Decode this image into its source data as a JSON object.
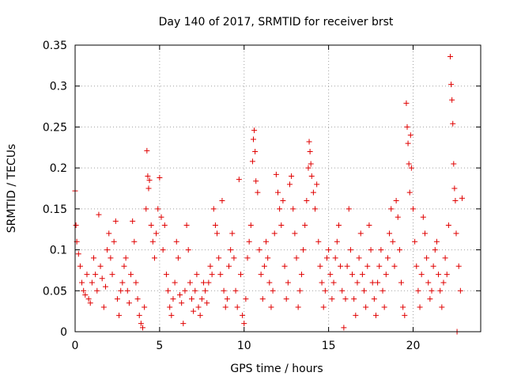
{
  "chart_data": {
    "type": "scatter",
    "title": "Day 140 of 2017, SRMTID for receiver brst",
    "xlabel": "GPS time / hours",
    "ylabel": "SRMTID / TECUs",
    "xlim": [
      0,
      24
    ],
    "ylim": [
      0,
      0.35
    ],
    "xticks": [
      0,
      5,
      10,
      15,
      20
    ],
    "xtick_labels": [
      "0",
      "5",
      "10",
      "15",
      "20"
    ],
    "yticks": [
      0,
      0.05,
      0.1,
      0.15,
      0.2,
      0.25,
      0.3,
      0.35
    ],
    "ytick_labels": [
      "0",
      "0.05",
      "0.1",
      "0.15",
      "0.2",
      "0.25",
      "0.3",
      "0.35"
    ],
    "grid": true,
    "marker": "plus",
    "color": "#e00000",
    "series": [
      {
        "name": "SRMTID",
        "points": [
          [
            0.0,
            0.172
          ],
          [
            0.05,
            0.13
          ],
          [
            0.1,
            0.11
          ],
          [
            0.2,
            0.095
          ],
          [
            0.3,
            0.08
          ],
          [
            0.4,
            0.06
          ],
          [
            0.5,
            0.05
          ],
          [
            0.6,
            0.045
          ],
          [
            0.7,
            0.07
          ],
          [
            0.8,
            0.04
          ],
          [
            0.9,
            0.035
          ],
          [
            1.0,
            0.06
          ],
          [
            1.1,
            0.09
          ],
          [
            1.2,
            0.07
          ],
          [
            1.3,
            0.05
          ],
          [
            1.4,
            0.143
          ],
          [
            1.5,
            0.08
          ],
          [
            1.6,
            0.065
          ],
          [
            1.7,
            0.03
          ],
          [
            1.8,
            0.055
          ],
          [
            1.9,
            0.1
          ],
          [
            2.0,
            0.12
          ],
          [
            2.1,
            0.09
          ],
          [
            2.2,
            0.07
          ],
          [
            2.3,
            0.11
          ],
          [
            2.4,
            0.135
          ],
          [
            2.5,
            0.04
          ],
          [
            2.6,
            0.02
          ],
          [
            2.7,
            0.05
          ],
          [
            2.8,
            0.06
          ],
          [
            2.9,
            0.08
          ],
          [
            3.0,
            0.09
          ],
          [
            3.1,
            0.05
          ],
          [
            3.2,
            0.035
          ],
          [
            3.3,
            0.07
          ],
          [
            3.4,
            0.135
          ],
          [
            3.5,
            0.11
          ],
          [
            3.6,
            0.06
          ],
          [
            3.7,
            0.04
          ],
          [
            3.8,
            0.02
          ],
          [
            3.9,
            0.01
          ],
          [
            4.0,
            0.005
          ],
          [
            4.1,
            0.03
          ],
          [
            4.2,
            0.15
          ],
          [
            4.25,
            0.221
          ],
          [
            4.3,
            0.19
          ],
          [
            4.35,
            0.175
          ],
          [
            4.4,
            0.185
          ],
          [
            4.5,
            0.13
          ],
          [
            4.6,
            0.11
          ],
          [
            4.7,
            0.09
          ],
          [
            4.8,
            0.12
          ],
          [
            4.9,
            0.15
          ],
          [
            5.0,
            0.188
          ],
          [
            5.1,
            0.14
          ],
          [
            5.2,
            0.1
          ],
          [
            5.3,
            0.13
          ],
          [
            5.4,
            0.07
          ],
          [
            5.5,
            0.05
          ],
          [
            5.6,
            0.03
          ],
          [
            5.7,
            0.02
          ],
          [
            5.8,
            0.04
          ],
          [
            5.9,
            0.06
          ],
          [
            6.0,
            0.11
          ],
          [
            6.1,
            0.09
          ],
          [
            6.2,
            0.045
          ],
          [
            6.3,
            0.035
          ],
          [
            6.4,
            0.01
          ],
          [
            6.5,
            0.05
          ],
          [
            6.6,
            0.13
          ],
          [
            6.7,
            0.1
          ],
          [
            6.8,
            0.06
          ],
          [
            6.9,
            0.04
          ],
          [
            7.0,
            0.025
          ],
          [
            7.1,
            0.05
          ],
          [
            7.2,
            0.07
          ],
          [
            7.3,
            0.03
          ],
          [
            7.4,
            0.02
          ],
          [
            7.5,
            0.04
          ],
          [
            7.6,
            0.06
          ],
          [
            7.7,
            0.05
          ],
          [
            7.8,
            0.035
          ],
          [
            7.9,
            0.06
          ],
          [
            8.0,
            0.08
          ],
          [
            8.1,
            0.07
          ],
          [
            8.2,
            0.15
          ],
          [
            8.3,
            0.13
          ],
          [
            8.4,
            0.12
          ],
          [
            8.5,
            0.09
          ],
          [
            8.6,
            0.07
          ],
          [
            8.7,
            0.16
          ],
          [
            8.8,
            0.05
          ],
          [
            8.9,
            0.03
          ],
          [
            9.0,
            0.04
          ],
          [
            9.1,
            0.08
          ],
          [
            9.2,
            0.1
          ],
          [
            9.3,
            0.12
          ],
          [
            9.4,
            0.09
          ],
          [
            9.5,
            0.05
          ],
          [
            9.6,
            0.03
          ],
          [
            9.7,
            0.186
          ],
          [
            9.8,
            0.07
          ],
          [
            9.9,
            0.02
          ],
          [
            10.0,
            0.01
          ],
          [
            10.1,
            0.04
          ],
          [
            10.2,
            0.09
          ],
          [
            10.3,
            0.11
          ],
          [
            10.4,
            0.13
          ],
          [
            10.5,
            0.208
          ],
          [
            10.55,
            0.235
          ],
          [
            10.6,
            0.246
          ],
          [
            10.65,
            0.22
          ],
          [
            10.7,
            0.184
          ],
          [
            10.8,
            0.17
          ],
          [
            10.9,
            0.1
          ],
          [
            11.0,
            0.07
          ],
          [
            11.1,
            0.04
          ],
          [
            11.2,
            0.08
          ],
          [
            11.3,
            0.11
          ],
          [
            11.4,
            0.09
          ],
          [
            11.5,
            0.06
          ],
          [
            11.6,
            0.03
          ],
          [
            11.7,
            0.05
          ],
          [
            11.8,
            0.12
          ],
          [
            11.9,
            0.192
          ],
          [
            12.0,
            0.17
          ],
          [
            12.1,
            0.15
          ],
          [
            12.2,
            0.13
          ],
          [
            12.3,
            0.16
          ],
          [
            12.4,
            0.08
          ],
          [
            12.5,
            0.04
          ],
          [
            12.6,
            0.06
          ],
          [
            12.7,
            0.18
          ],
          [
            12.8,
            0.19
          ],
          [
            12.9,
            0.15
          ],
          [
            13.0,
            0.12
          ],
          [
            13.1,
            0.09
          ],
          [
            13.2,
            0.03
          ],
          [
            13.3,
            0.05
          ],
          [
            13.4,
            0.07
          ],
          [
            13.5,
            0.1
          ],
          [
            13.6,
            0.13
          ],
          [
            13.7,
            0.16
          ],
          [
            13.8,
            0.2
          ],
          [
            13.85,
            0.232
          ],
          [
            13.9,
            0.22
          ],
          [
            13.95,
            0.205
          ],
          [
            14.0,
            0.19
          ],
          [
            14.1,
            0.17
          ],
          [
            14.2,
            0.15
          ],
          [
            14.3,
            0.18
          ],
          [
            14.4,
            0.11
          ],
          [
            14.5,
            0.08
          ],
          [
            14.6,
            0.06
          ],
          [
            14.7,
            0.03
          ],
          [
            14.8,
            0.05
          ],
          [
            14.9,
            0.09
          ],
          [
            15.0,
            0.1
          ],
          [
            15.1,
            0.07
          ],
          [
            15.2,
            0.04
          ],
          [
            15.3,
            0.06
          ],
          [
            15.4,
            0.09
          ],
          [
            15.5,
            0.11
          ],
          [
            15.6,
            0.13
          ],
          [
            15.7,
            0.08
          ],
          [
            15.8,
            0.05
          ],
          [
            15.9,
            0.005
          ],
          [
            16.0,
            0.04
          ],
          [
            16.1,
            0.08
          ],
          [
            16.2,
            0.15
          ],
          [
            16.3,
            0.1
          ],
          [
            16.4,
            0.07
          ],
          [
            16.5,
            0.04
          ],
          [
            16.6,
            0.02
          ],
          [
            16.7,
            0.06
          ],
          [
            16.8,
            0.09
          ],
          [
            16.9,
            0.12
          ],
          [
            17.0,
            0.07
          ],
          [
            17.1,
            0.05
          ],
          [
            17.2,
            0.03
          ],
          [
            17.3,
            0.08
          ],
          [
            17.4,
            0.13
          ],
          [
            17.5,
            0.1
          ],
          [
            17.6,
            0.06
          ],
          [
            17.7,
            0.04
          ],
          [
            17.8,
            0.02
          ],
          [
            17.9,
            0.06
          ],
          [
            18.0,
            0.08
          ],
          [
            18.1,
            0.1
          ],
          [
            18.2,
            0.05
          ],
          [
            18.3,
            0.03
          ],
          [
            18.4,
            0.07
          ],
          [
            18.5,
            0.09
          ],
          [
            18.6,
            0.12
          ],
          [
            18.7,
            0.15
          ],
          [
            18.8,
            0.11
          ],
          [
            18.9,
            0.08
          ],
          [
            19.0,
            0.16
          ],
          [
            19.1,
            0.14
          ],
          [
            19.2,
            0.1
          ],
          [
            19.3,
            0.06
          ],
          [
            19.4,
            0.03
          ],
          [
            19.5,
            0.02
          ],
          [
            19.6,
            0.279
          ],
          [
            19.65,
            0.25
          ],
          [
            19.7,
            0.23
          ],
          [
            19.75,
            0.205
          ],
          [
            19.8,
            0.17
          ],
          [
            19.85,
            0.24
          ],
          [
            19.9,
            0.2
          ],
          [
            20.0,
            0.15
          ],
          [
            20.1,
            0.11
          ],
          [
            20.2,
            0.08
          ],
          [
            20.3,
            0.05
          ],
          [
            20.4,
            0.03
          ],
          [
            20.5,
            0.07
          ],
          [
            20.6,
            0.14
          ],
          [
            20.7,
            0.12
          ],
          [
            20.8,
            0.09
          ],
          [
            20.9,
            0.06
          ],
          [
            21.0,
            0.04
          ],
          [
            21.1,
            0.05
          ],
          [
            21.2,
            0.08
          ],
          [
            21.3,
            0.1
          ],
          [
            21.4,
            0.11
          ],
          [
            21.5,
            0.07
          ],
          [
            21.6,
            0.05
          ],
          [
            21.7,
            0.03
          ],
          [
            21.8,
            0.06
          ],
          [
            21.9,
            0.09
          ],
          [
            22.0,
            0.07
          ],
          [
            22.1,
            0.13
          ],
          [
            22.2,
            0.336
          ],
          [
            22.25,
            0.302
          ],
          [
            22.3,
            0.283
          ],
          [
            22.35,
            0.254
          ],
          [
            22.4,
            0.205
          ],
          [
            22.45,
            0.175
          ],
          [
            22.5,
            0.16
          ],
          [
            22.55,
            0.12
          ],
          [
            22.6,
            0.0
          ],
          [
            22.7,
            0.08
          ],
          [
            22.8,
            0.05
          ],
          [
            22.9,
            0.163
          ]
        ]
      }
    ]
  }
}
